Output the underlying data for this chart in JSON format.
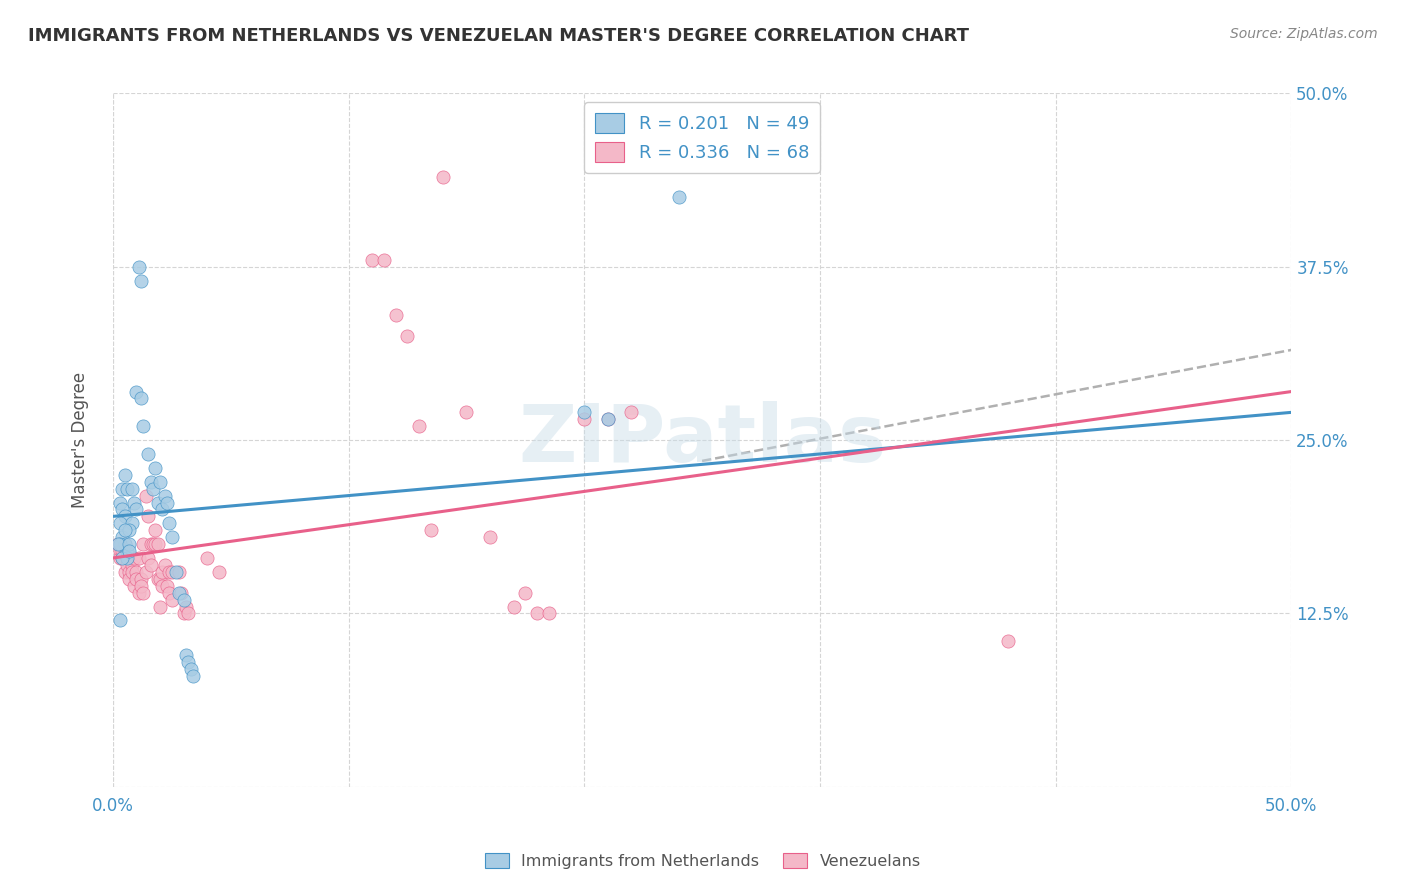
{
  "title": "IMMIGRANTS FROM NETHERLANDS VS VENEZUELAN MASTER'S DEGREE CORRELATION CHART",
  "source": "Source: ZipAtlas.com",
  "ylabel_label": "Master's Degree",
  "x_min": 0.0,
  "x_max": 0.5,
  "y_min": 0.0,
  "y_max": 0.5,
  "yticks": [
    0.0,
    0.125,
    0.25,
    0.375,
    0.5
  ],
  "ytick_labels": [
    "",
    "12.5%",
    "25.0%",
    "37.5%",
    "50.0%"
  ],
  "legend_r1": "R = 0.201",
  "legend_n1": "N = 49",
  "legend_r2": "R = 0.336",
  "legend_n2": "N = 68",
  "color_blue": "#a8cce4",
  "color_pink": "#f4b8c8",
  "color_blue_line": "#4292c6",
  "color_pink_line": "#e8608a",
  "color_dashed_line": "#b0b0b0",
  "scatter_blue": [
    [
      0.003,
      0.205
    ],
    [
      0.004,
      0.215
    ],
    [
      0.005,
      0.225
    ],
    [
      0.006,
      0.215
    ],
    [
      0.004,
      0.2
    ],
    [
      0.005,
      0.195
    ],
    [
      0.003,
      0.19
    ],
    [
      0.004,
      0.18
    ],
    [
      0.005,
      0.175
    ],
    [
      0.006,
      0.17
    ],
    [
      0.006,
      0.165
    ],
    [
      0.008,
      0.19
    ],
    [
      0.007,
      0.185
    ],
    [
      0.003,
      0.175
    ],
    [
      0.002,
      0.175
    ],
    [
      0.004,
      0.165
    ],
    [
      0.005,
      0.185
    ],
    [
      0.007,
      0.175
    ],
    [
      0.007,
      0.17
    ],
    [
      0.008,
      0.215
    ],
    [
      0.009,
      0.205
    ],
    [
      0.01,
      0.2
    ],
    [
      0.01,
      0.285
    ],
    [
      0.011,
      0.375
    ],
    [
      0.012,
      0.365
    ],
    [
      0.012,
      0.28
    ],
    [
      0.013,
      0.26
    ],
    [
      0.015,
      0.24
    ],
    [
      0.016,
      0.22
    ],
    [
      0.017,
      0.215
    ],
    [
      0.018,
      0.23
    ],
    [
      0.019,
      0.205
    ],
    [
      0.02,
      0.22
    ],
    [
      0.021,
      0.2
    ],
    [
      0.022,
      0.21
    ],
    [
      0.023,
      0.205
    ],
    [
      0.024,
      0.19
    ],
    [
      0.025,
      0.18
    ],
    [
      0.027,
      0.155
    ],
    [
      0.028,
      0.14
    ],
    [
      0.03,
      0.135
    ],
    [
      0.031,
      0.095
    ],
    [
      0.032,
      0.09
    ],
    [
      0.033,
      0.085
    ],
    [
      0.034,
      0.08
    ],
    [
      0.2,
      0.27
    ],
    [
      0.21,
      0.265
    ],
    [
      0.24,
      0.425
    ],
    [
      0.003,
      0.12
    ]
  ],
  "scatter_pink": [
    [
      0.002,
      0.175
    ],
    [
      0.003,
      0.17
    ],
    [
      0.003,
      0.165
    ],
    [
      0.004,
      0.17
    ],
    [
      0.004,
      0.165
    ],
    [
      0.005,
      0.175
    ],
    [
      0.005,
      0.155
    ],
    [
      0.006,
      0.165
    ],
    [
      0.006,
      0.16
    ],
    [
      0.007,
      0.155
    ],
    [
      0.007,
      0.15
    ],
    [
      0.008,
      0.16
    ],
    [
      0.008,
      0.155
    ],
    [
      0.009,
      0.165
    ],
    [
      0.009,
      0.145
    ],
    [
      0.01,
      0.155
    ],
    [
      0.01,
      0.15
    ],
    [
      0.011,
      0.165
    ],
    [
      0.011,
      0.14
    ],
    [
      0.012,
      0.15
    ],
    [
      0.012,
      0.145
    ],
    [
      0.013,
      0.175
    ],
    [
      0.013,
      0.14
    ],
    [
      0.014,
      0.155
    ],
    [
      0.014,
      0.21
    ],
    [
      0.015,
      0.195
    ],
    [
      0.015,
      0.165
    ],
    [
      0.016,
      0.175
    ],
    [
      0.016,
      0.16
    ],
    [
      0.017,
      0.175
    ],
    [
      0.018,
      0.185
    ],
    [
      0.018,
      0.175
    ],
    [
      0.019,
      0.15
    ],
    [
      0.019,
      0.175
    ],
    [
      0.02,
      0.13
    ],
    [
      0.02,
      0.15
    ],
    [
      0.021,
      0.155
    ],
    [
      0.021,
      0.145
    ],
    [
      0.022,
      0.16
    ],
    [
      0.023,
      0.145
    ],
    [
      0.024,
      0.155
    ],
    [
      0.024,
      0.14
    ],
    [
      0.025,
      0.155
    ],
    [
      0.025,
      0.135
    ],
    [
      0.028,
      0.155
    ],
    [
      0.029,
      0.14
    ],
    [
      0.03,
      0.125
    ],
    [
      0.031,
      0.13
    ],
    [
      0.032,
      0.125
    ],
    [
      0.04,
      0.165
    ],
    [
      0.045,
      0.155
    ],
    [
      0.11,
      0.38
    ],
    [
      0.115,
      0.38
    ],
    [
      0.12,
      0.34
    ],
    [
      0.125,
      0.325
    ],
    [
      0.13,
      0.26
    ],
    [
      0.135,
      0.185
    ],
    [
      0.14,
      0.44
    ],
    [
      0.15,
      0.27
    ],
    [
      0.16,
      0.18
    ],
    [
      0.17,
      0.13
    ],
    [
      0.175,
      0.14
    ],
    [
      0.18,
      0.125
    ],
    [
      0.185,
      0.125
    ],
    [
      0.2,
      0.265
    ],
    [
      0.21,
      0.265
    ],
    [
      0.22,
      0.27
    ],
    [
      0.38,
      0.105
    ]
  ],
  "blue_line_x": [
    0.0,
    0.5
  ],
  "blue_line_y": [
    0.195,
    0.27
  ],
  "pink_line_x": [
    0.0,
    0.5
  ],
  "pink_line_y": [
    0.165,
    0.285
  ],
  "dash_line_x": [
    0.25,
    0.5
  ],
  "dash_line_y": [
    0.235,
    0.315
  ],
  "background_color": "#ffffff",
  "grid_color": "#d5d5d5",
  "title_color": "#333333",
  "axis_label_color": "#555555",
  "right_tick_color": "#4292c6",
  "watermark_text": "ZIPatlas",
  "watermark_color": "#c8dce8",
  "watermark_alpha": 0.45
}
